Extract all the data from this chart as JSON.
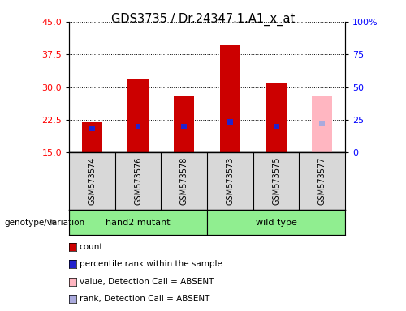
{
  "title": "GDS3735 / Dr.24347.1.A1_x_at",
  "samples": [
    "GSM573574",
    "GSM573576",
    "GSM573578",
    "GSM573573",
    "GSM573575",
    "GSM573577"
  ],
  "count_values": [
    22.0,
    32.0,
    28.0,
    39.5,
    31.0,
    null
  ],
  "rank_values": [
    20.5,
    21.0,
    21.0,
    22.0,
    21.0,
    null
  ],
  "absent_count": [
    null,
    null,
    null,
    null,
    null,
    28.0
  ],
  "absent_rank": [
    null,
    null,
    null,
    null,
    null,
    21.5
  ],
  "base_value": 15,
  "ylim_left": [
    15,
    45
  ],
  "ylim_right": [
    0,
    100
  ],
  "yticks_left": [
    15,
    22.5,
    30,
    37.5,
    45
  ],
  "yticks_right": [
    0,
    25,
    50,
    75,
    100
  ],
  "bar_color_red": "#cc0000",
  "bar_color_blue": "#2222cc",
  "bar_color_pink": "#ffb6c1",
  "bar_color_lightblue": "#aaaadd",
  "group_label": "genotype/variation",
  "group_hand2_label": "hand2 mutant",
  "group_wild_label": "wild type",
  "group_color": "#90EE90",
  "sample_bg_color": "#d8d8d8",
  "legend_items": [
    {
      "color": "#cc0000",
      "label": "count"
    },
    {
      "color": "#2222cc",
      "label": "percentile rank within the sample"
    },
    {
      "color": "#ffb6c1",
      "label": "value, Detection Call = ABSENT"
    },
    {
      "color": "#aaaadd",
      "label": "rank, Detection Call = ABSENT"
    }
  ]
}
